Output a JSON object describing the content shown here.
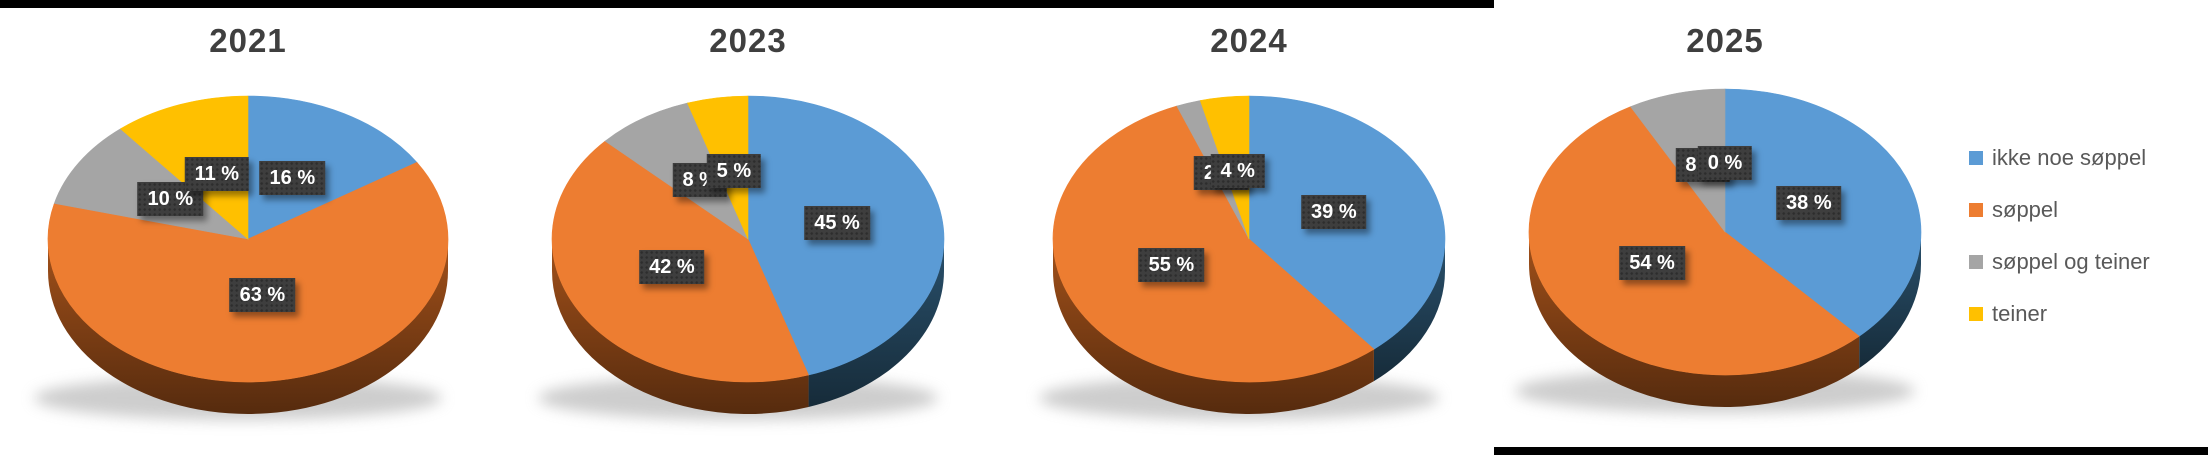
{
  "page": {
    "background": "#FFFFFF",
    "title_color": "#3F3F3F"
  },
  "label_style": {
    "background": "#3E3E3E",
    "text_color": "#FFFFFF"
  },
  "legend": {
    "position": "right",
    "items": [
      {
        "label": "ikke noe søppel",
        "color": "#5B9BD5"
      },
      {
        "label": "søppel",
        "color": "#ED7D31"
      },
      {
        "label": "søppel og teiner",
        "color": "#A5A5A5"
      },
      {
        "label": "teiner",
        "color": "#FFC000"
      }
    ]
  },
  "chart_data": [
    {
      "type": "pie",
      "title": "2021",
      "style": "3d",
      "start_angle_deg": 270,
      "direction": "clockwise",
      "categories": [
        "ikke noe søppel",
        "søppel",
        "søppel og teiner",
        "teiner"
      ],
      "values": [
        16,
        63,
        10,
        11
      ],
      "labels": [
        "16 %",
        "63 %",
        "10 %",
        "11 %"
      ],
      "colors": [
        "#5B9BD5",
        "#ED7D31",
        "#A5A5A5",
        "#FFC000"
      ],
      "side_colors": [
        "#24455C",
        "#8A4516",
        "#7F7F7F",
        "#A07C00"
      ],
      "legend_visible": false
    },
    {
      "type": "pie",
      "title": "2023",
      "style": "3d",
      "start_angle_deg": 270,
      "direction": "clockwise",
      "categories": [
        "ikke noe søppel",
        "søppel",
        "søppel og teiner",
        "teiner"
      ],
      "values": [
        45,
        42,
        8,
        5
      ],
      "labels": [
        "45 %",
        "42 %",
        "8 %",
        "5 %"
      ],
      "colors": [
        "#5B9BD5",
        "#ED7D31",
        "#A5A5A5",
        "#FFC000"
      ],
      "side_colors": [
        "#24455C",
        "#8A4516",
        "#7F7F7F",
        "#A07C00"
      ],
      "legend_visible": false
    },
    {
      "type": "pie",
      "title": "2024",
      "style": "3d",
      "start_angle_deg": 270,
      "direction": "clockwise",
      "categories": [
        "ikke noe søppel",
        "søppel",
        "søppel og teiner",
        "teiner"
      ],
      "values": [
        39,
        55,
        2,
        4
      ],
      "labels": [
        "39 %",
        "55 %",
        "2 %",
        "4 %"
      ],
      "colors": [
        "#5B9BD5",
        "#ED7D31",
        "#A5A5A5",
        "#FFC000"
      ],
      "side_colors": [
        "#24455C",
        "#8A4516",
        "#7F7F7F",
        "#A07C00"
      ],
      "legend_visible": false
    },
    {
      "type": "pie",
      "title": "2025",
      "style": "3d",
      "start_angle_deg": 270,
      "direction": "clockwise",
      "categories": [
        "ikke noe søppel",
        "søppel",
        "søppel og teiner",
        "teiner"
      ],
      "values": [
        38,
        54,
        8,
        0
      ],
      "labels": [
        "38 %",
        "54 %",
        "8 %",
        "0 %"
      ],
      "colors": [
        "#5B9BD5",
        "#ED7D31",
        "#A5A5A5",
        "#FFC000"
      ],
      "side_colors": [
        "#24455C",
        "#8A4516",
        "#7F7F7F",
        "#A07C00"
      ],
      "legend_visible": true
    }
  ]
}
